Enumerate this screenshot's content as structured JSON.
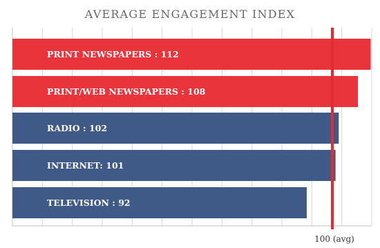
{
  "chart_data": {
    "type": "bar",
    "orientation": "horizontal",
    "title": "AVERAGE ENGAGEMENT INDEX",
    "categories": [
      "PRINT NEWSPAPERS",
      "PRINT/WEB NEWSPAPERS",
      "RADIO",
      "INTERNET",
      "TELEVISION"
    ],
    "values": [
      112,
      108,
      102,
      101,
      92
    ],
    "bar_labels": [
      "PRINT NEWSPAPERS : 112",
      "PRINT/WEB NEWSPAPERS : 108",
      "RADIO : 102",
      "INTERNET: 101",
      "TELEVISION : 92"
    ],
    "bar_colors": [
      "#e8343a",
      "#e8343a",
      "#3f5a86",
      "#3f5a86",
      "#3f5a86"
    ],
    "reference_line": {
      "value": 100,
      "label": "100 (avg)",
      "color": "#e02d33"
    },
    "xlim": [
      0,
      112
    ],
    "grid": true,
    "grid_color": "#d8d8d8",
    "axis_color": "#c2c2c2"
  }
}
